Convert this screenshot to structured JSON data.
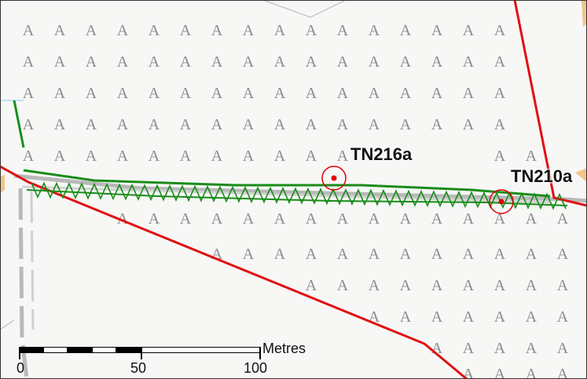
{
  "map": {
    "features": [
      {
        "label": "TN216a",
        "marker_color": "#e00000"
      },
      {
        "label": "TN210a",
        "marker_color": "#e00000"
      }
    ],
    "symbols": {
      "rough_grassland_glyph": "A",
      "glyph_color": "#8c8c8c"
    },
    "colors": {
      "boundary": "#e01010",
      "hedgerow": "#1a8c1a",
      "track": "#b9b9b9",
      "background": "#f7f7f6"
    },
    "scale_bar": {
      "unit": "Metres",
      "ticks": [
        "0",
        "50",
        "100"
      ]
    }
  }
}
